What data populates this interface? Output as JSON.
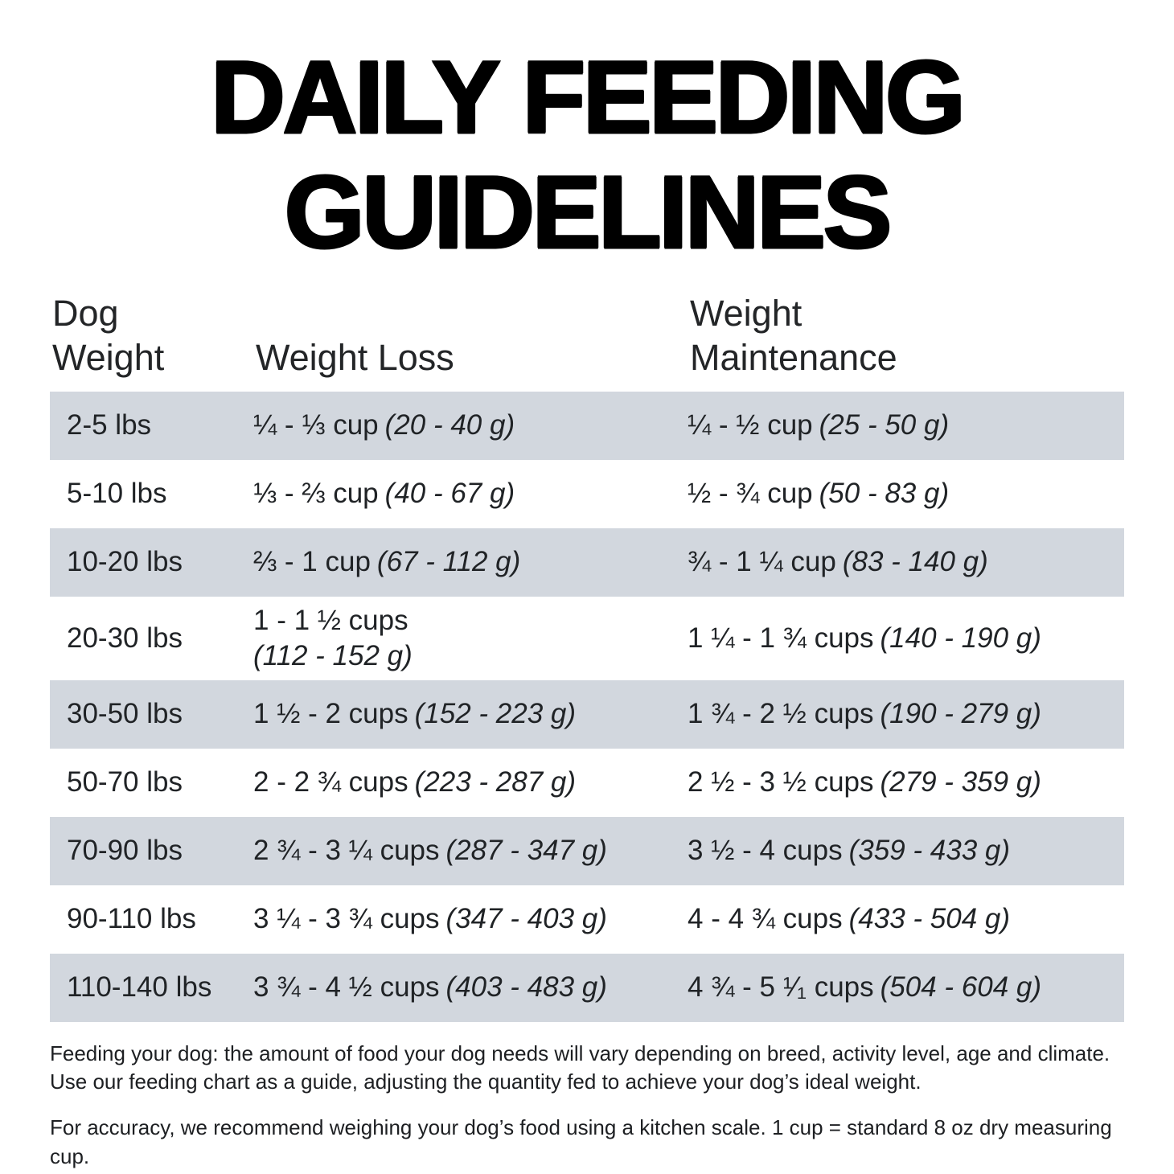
{
  "title": {
    "line1": "DAILY FEEDING",
    "line2": "GUIDELINES"
  },
  "table": {
    "headers": {
      "dog_weight": "Dog\nWeight",
      "weight_loss": "Weight Loss",
      "weight_maintenance": "Weight\nMaintenance"
    },
    "rows": [
      {
        "weight": "2-5 lbs",
        "loss": {
          "cups": "¼ - ⅓ cup",
          "grams": "(20 - 40 g)"
        },
        "maintenance": {
          "cups": "¼ - ½ cup",
          "grams": "(25 - 50 g)"
        }
      },
      {
        "weight": "5-10 lbs",
        "loss": {
          "cups": "⅓ - ⅔ cup",
          "grams": "(40 - 67 g)"
        },
        "maintenance": {
          "cups": "½ - ¾ cup",
          "grams": "(50 - 83 g)"
        }
      },
      {
        "weight": "10-20 lbs",
        "loss": {
          "cups": "⅔ - 1 cup",
          "grams": "(67 - 112 g)"
        },
        "maintenance": {
          "cups": "¾ - 1 ¼ cup",
          "grams": "(83 - 140 g)"
        }
      },
      {
        "weight": "20-30 lbs",
        "loss": {
          "cups": "1 - 1 ½ cups",
          "grams": "(112 - 152 g)"
        },
        "maintenance": {
          "cups": "1 ¼ - 1 ¾ cups",
          "grams": "(140 - 190 g)"
        }
      },
      {
        "weight": "30-50 lbs",
        "loss": {
          "cups": "1 ½ - 2 cups",
          "grams": "(152 - 223 g)"
        },
        "maintenance": {
          "cups": "1 ¾ - 2 ½ cups",
          "grams": "(190 - 279 g)"
        }
      },
      {
        "weight": "50-70 lbs",
        "loss": {
          "cups": "2 - 2 ¾ cups",
          "grams": "(223 - 287 g)"
        },
        "maintenance": {
          "cups": "2 ½ - 3 ½ cups",
          "grams": "(279 - 359 g)"
        }
      },
      {
        "weight": "70-90 lbs",
        "loss": {
          "cups": "2 ¾ - 3 ¼ cups",
          "grams": "(287 - 347 g)"
        },
        "maintenance": {
          "cups": "3 ½ - 4 cups",
          "grams": "(359 - 433 g)"
        }
      },
      {
        "weight": "90-110 lbs",
        "loss": {
          "cups": "3 ¼ - 3 ¾ cups",
          "grams": "(347 - 403 g)"
        },
        "maintenance": {
          "cups": "4 - 4 ¾ cups",
          "grams": "(433 - 504 g)"
        }
      },
      {
        "weight": "110-140 lbs",
        "loss": {
          "cups": "3 ¾ - 4 ½ cups",
          "grams": "(403 - 483 g)"
        },
        "maintenance": {
          "cups": "4 ¾ - 5 ¹⁄₁ cups",
          "grams": "(504 - 604 g)"
        }
      }
    ]
  },
  "notes": {
    "feeding": "Feeding your dog: the amount of food your dog needs will vary depending on breed, activity level, age and climate. Use our feeding chart as a guide, adjusting the quantity fed to achieve your dog’s ideal weight.",
    "accuracy": "For accuracy, we recommend weighing your dog’s food using a kitchen scale. 1 cup = standard 8 oz dry measuring cup."
  },
  "colors": {
    "stripe_row_bg": "#d2d7de",
    "text": "#202326",
    "title": "#000000"
  }
}
